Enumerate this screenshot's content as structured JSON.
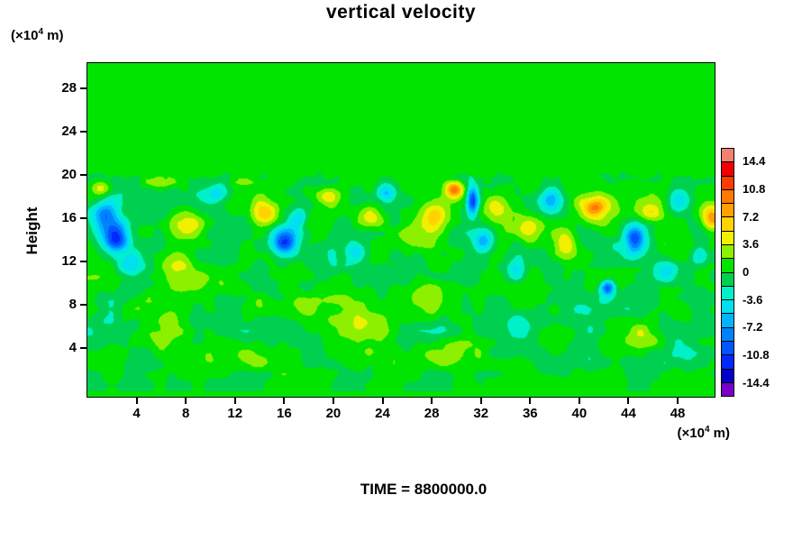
{
  "title": "vertical velocity",
  "y_axis_title": "Height",
  "time_label": "TIME = 8800000.0",
  "y_unit": {
    "prefix": "(×10",
    "exponent": "4",
    "suffix": " m)"
  },
  "x_unit": {
    "prefix": "(×10",
    "exponent": "4",
    "suffix": " m)"
  },
  "chart_data": {
    "type": "heatmap",
    "title": "vertical velocity",
    "xlabel": "(×10^4 m)",
    "ylabel": "Height (×10^4 m)",
    "time_annotation": "TIME = 8800000.0",
    "xlim": [
      0,
      51
    ],
    "ylim": [
      -0.5,
      30.3
    ],
    "x_ticks": [
      4,
      8,
      12,
      16,
      20,
      24,
      28,
      32,
      36,
      40,
      44,
      48
    ],
    "y_ticks": [
      4,
      8,
      12,
      16,
      20,
      24,
      28
    ],
    "background_value": 0,
    "turbulent_layer_top": 20,
    "boundary_jitter": 0.45,
    "grid": false,
    "legend_position": "right-colorbar",
    "colorbar": {
      "min": -16.2,
      "max": 16.2,
      "band_step": 1.8,
      "tick_values": [
        14.4,
        10.8,
        7.2,
        3.6,
        0,
        -3.6,
        -7.2,
        -10.8,
        -14.4
      ],
      "tick_labels": [
        "14.4",
        "10.8",
        "7.2",
        "3.6",
        "0",
        "-3.6",
        "-7.2",
        "-10.8",
        "-14.4"
      ],
      "colors_ascending": [
        "#7800C8",
        "#0000C8",
        "#0028FF",
        "#0055FF",
        "#0082FF",
        "#00B4FF",
        "#00E0F0",
        "#00F0C8",
        "#00D050",
        "#00E400",
        "#8CF000",
        "#F0F000",
        "#FFD200",
        "#FFA000",
        "#FF7800",
        "#FF3C00",
        "#F00000",
        "#F08070"
      ]
    },
    "features_format": [
      "x",
      "y",
      "amplitude",
      "rx",
      "ry"
    ],
    "features": [
      [
        1.4,
        16.2,
        -7,
        1.0,
        1.3
      ],
      [
        2.3,
        14.2,
        -11.5,
        1.0,
        1.3
      ],
      [
        3.2,
        11.8,
        -5,
        1.0,
        1.1
      ],
      [
        1.2,
        18.8,
        5,
        0.9,
        0.7
      ],
      [
        8.0,
        15.5,
        5,
        1.3,
        1.5
      ],
      [
        7.2,
        12.0,
        3,
        1.2,
        1.2
      ],
      [
        10.5,
        18.2,
        -4,
        0.8,
        0.8
      ],
      [
        14.5,
        16.5,
        6,
        1.1,
        1.0
      ],
      [
        16.0,
        13.8,
        -11,
        1.0,
        1.3
      ],
      [
        17.2,
        16.2,
        -4.5,
        0.7,
        0.9
      ],
      [
        19.4,
        18.0,
        6,
        1.1,
        0.9
      ],
      [
        21.8,
        13.0,
        -4.5,
        0.8,
        1.0
      ],
      [
        23.0,
        16.3,
        5,
        1.0,
        1.0
      ],
      [
        24.3,
        18.3,
        -5,
        0.7,
        0.9
      ],
      [
        26.5,
        14.5,
        4,
        1.3,
        1.5
      ],
      [
        28.3,
        16.0,
        6,
        1.1,
        1.3
      ],
      [
        29.8,
        18.7,
        10,
        0.8,
        0.8
      ],
      [
        31.3,
        17.6,
        -12,
        0.45,
        1.3
      ],
      [
        32.2,
        14.0,
        -7,
        0.8,
        1.1
      ],
      [
        33.2,
        16.8,
        4,
        0.8,
        0.8
      ],
      [
        34.8,
        11.0,
        -4,
        1.0,
        1.0
      ],
      [
        35.8,
        15.0,
        4,
        1.2,
        1.2
      ],
      [
        37.7,
        17.7,
        -6,
        0.8,
        1.0
      ],
      [
        38.8,
        13.5,
        5,
        1.2,
        1.4
      ],
      [
        41.0,
        17.0,
        7,
        1.7,
        1.6
      ],
      [
        41.3,
        17.0,
        4.5,
        0.8,
        0.7
      ],
      [
        42.3,
        9.6,
        -11,
        0.55,
        0.7
      ],
      [
        44.5,
        14.0,
        -10,
        0.8,
        1.3
      ],
      [
        45.8,
        16.4,
        4,
        0.9,
        0.9
      ],
      [
        47.0,
        11.3,
        -4,
        0.9,
        1.0
      ],
      [
        48.0,
        17.6,
        -6,
        0.9,
        1.1
      ],
      [
        50.8,
        16.0,
        10,
        0.8,
        1.2
      ],
      [
        49.7,
        12.5,
        -5,
        0.8,
        1.0
      ],
      [
        12.8,
        19.4,
        3.5,
        1.0,
        0.5
      ],
      [
        6.0,
        19.3,
        3,
        1.5,
        0.5
      ],
      [
        44.0,
        19.3,
        3,
        1.4,
        0.5
      ],
      [
        5.0,
        5.0,
        2.5,
        2.0,
        1.4
      ],
      [
        12.0,
        3.5,
        2.5,
        2.0,
        1.3
      ],
      [
        22.0,
        6.0,
        2.3,
        2.0,
        1.5
      ],
      [
        30.0,
        3.5,
        2.4,
        2.4,
        1.4
      ],
      [
        38.0,
        5.0,
        2.2,
        1.8,
        1.3
      ],
      [
        45.0,
        4.5,
        2.4,
        2.0,
        1.4
      ],
      [
        17.0,
        8.0,
        2.2,
        1.6,
        1.3
      ],
      [
        27.0,
        9.0,
        2.2,
        1.8,
        1.4
      ],
      [
        9.0,
        10.5,
        2.5,
        1.5,
        1.3
      ],
      [
        35.0,
        6.5,
        -2.5,
        1.5,
        1.2
      ]
    ],
    "noise": {
      "amp1": 1.8,
      "scale1": 2.4,
      "amp2": 1.1,
      "scale2": 1.0
    }
  }
}
